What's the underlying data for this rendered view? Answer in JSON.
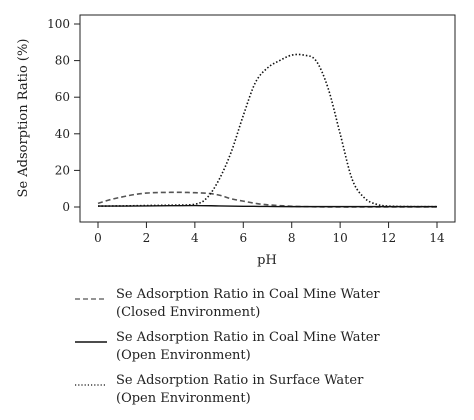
{
  "chart_data": {
    "type": "line",
    "xlabel": "pH",
    "ylabel": "Se Adsorption Ratio (%)",
    "xlim": [
      0,
      14
    ],
    "ylim": [
      0,
      100
    ],
    "xticks": [
      "0",
      "2",
      "4",
      "6",
      "8",
      "10",
      "12",
      "14"
    ],
    "yticks": [
      "0",
      "20",
      "40",
      "60",
      "80",
      "100"
    ],
    "grid": false,
    "legend_position": "below",
    "series": [
      {
        "name": "Se Adsorption Ratio in Coal Mine Water (Closed Environment)",
        "label_lines": [
          "Se Adsorption Ratio in Coal Mine Water",
          "(Closed Environment)"
        ],
        "style": "dashed",
        "color": "#555555",
        "x": [
          0,
          0.5,
          1,
          1.5,
          2,
          2.5,
          3,
          3.5,
          4,
          4.5,
          5,
          5.5,
          6,
          6.5,
          7,
          8,
          9,
          10,
          11,
          12,
          13,
          14
        ],
        "y": [
          2,
          4,
          5.5,
          6.8,
          7.6,
          7.9,
          8,
          8,
          7.8,
          7.5,
          6.5,
          4.5,
          3.2,
          2,
          1.2,
          0.4,
          0.1,
          0,
          0,
          0,
          0,
          0
        ]
      },
      {
        "name": "Se Adsorption Ratio in Coal Mine Water (Open Environment)",
        "label_lines": [
          "Se Adsorption Ratio in Coal Mine Water",
          "(Open Environment)"
        ],
        "style": "solid",
        "color": "#111111",
        "x": [
          0,
          1,
          2,
          3,
          4,
          5,
          6,
          7,
          8,
          9,
          10,
          11,
          12,
          13,
          14
        ],
        "y": [
          0.5,
          0.5,
          0.6,
          0.7,
          0.8,
          0.6,
          0.4,
          0.3,
          0.2,
          0.2,
          0.2,
          0.2,
          0.2,
          0.2,
          0.2
        ]
      },
      {
        "name": "Se Adsorption Ratio in Surface Water (Open Environment)",
        "label_lines": [
          "Se Adsorption Ratio in Surface Water",
          "(Open Environment)"
        ],
        "style": "dotted",
        "color": "#111111",
        "x": [
          0,
          1,
          2,
          3,
          4,
          4.5,
          5,
          5.5,
          6,
          6.5,
          7,
          7.5,
          8,
          8.5,
          9,
          9.5,
          10,
          10.5,
          11,
          11.5,
          12,
          13,
          14
        ],
        "y": [
          0.5,
          0.6,
          0.8,
          1,
          1.5,
          5,
          15,
          30,
          50,
          68,
          76,
          80,
          83,
          83,
          80,
          65,
          40,
          15,
          5,
          1.5,
          0.5,
          0.2,
          0.2
        ]
      }
    ]
  }
}
